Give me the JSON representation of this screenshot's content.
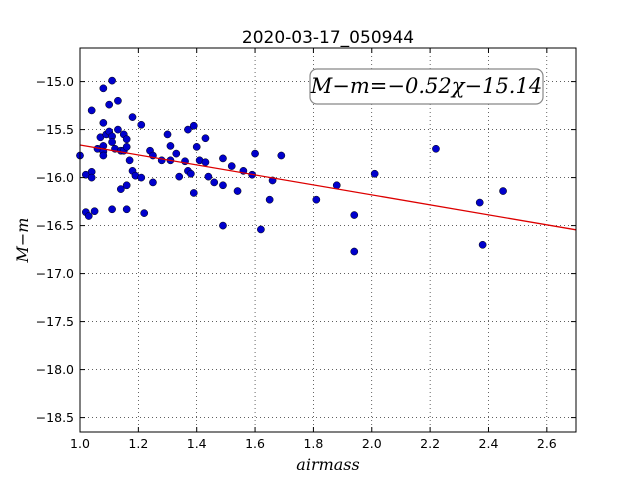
{
  "chart_data": {
    "type": "scatter",
    "title": "2020-03-17_050944",
    "xlabel": "airmass",
    "ylabel": "M−m",
    "xlim": [
      1.0,
      2.7
    ],
    "ylim": [
      -14.65,
      -18.65
    ],
    "y_inverted": true,
    "grid": true,
    "grid_style": "dotted",
    "x_ticks": [
      1.0,
      1.2,
      1.4,
      1.6,
      1.8,
      2.0,
      2.2,
      2.4,
      2.6
    ],
    "x_tick_labels": [
      "1.0",
      "1.2",
      "1.4",
      "1.6",
      "1.8",
      "2.0",
      "2.2",
      "2.4",
      "2.6"
    ],
    "y_ticks": [
      -15.0,
      -15.5,
      -16.0,
      -16.5,
      -17.0,
      -17.5,
      -18.0,
      -18.5
    ],
    "y_tick_labels": [
      "−15.0",
      "−15.5",
      "−16.0",
      "−16.5",
      "−17.0",
      "−17.5",
      "−18.0",
      "−18.5"
    ],
    "annotation": "M−m=−0.52χ−15.14",
    "annotation_placement": "top-right",
    "fit": {
      "slope": -0.52,
      "intercept": -15.14,
      "color": "#dd0000"
    },
    "marker_color": "#0000cc",
    "series": [
      {
        "points": [
          [
            1.0,
            -15.77
          ],
          [
            1.02,
            -15.97
          ],
          [
            1.02,
            -16.36
          ],
          [
            1.03,
            -16.4
          ],
          [
            1.04,
            -15.3
          ],
          [
            1.04,
            -15.94
          ],
          [
            1.04,
            -16.0
          ],
          [
            1.05,
            -16.35
          ],
          [
            1.06,
            -15.7
          ],
          [
            1.07,
            -15.58
          ],
          [
            1.08,
            -15.43
          ],
          [
            1.08,
            -15.67
          ],
          [
            1.08,
            -15.73
          ],
          [
            1.08,
            -15.77
          ],
          [
            1.08,
            -15.07
          ],
          [
            1.09,
            -15.55
          ],
          [
            1.1,
            -15.24
          ],
          [
            1.1,
            -15.52
          ],
          [
            1.11,
            -14.99
          ],
          [
            1.11,
            -15.57
          ],
          [
            1.11,
            -15.63
          ],
          [
            1.11,
            -16.33
          ],
          [
            1.12,
            -15.7
          ],
          [
            1.13,
            -15.2
          ],
          [
            1.13,
            -15.5
          ],
          [
            1.14,
            -15.72
          ],
          [
            1.14,
            -16.12
          ],
          [
            1.15,
            -15.55
          ],
          [
            1.15,
            -15.72
          ],
          [
            1.16,
            -15.6
          ],
          [
            1.16,
            -15.68
          ],
          [
            1.16,
            -16.08
          ],
          [
            1.16,
            -16.33
          ],
          [
            1.17,
            -15.82
          ],
          [
            1.18,
            -15.37
          ],
          [
            1.18,
            -15.93
          ],
          [
            1.19,
            -15.98
          ],
          [
            1.21,
            -15.45
          ],
          [
            1.21,
            -16.0
          ],
          [
            1.22,
            -16.37
          ],
          [
            1.24,
            -15.72
          ],
          [
            1.25,
            -15.77
          ],
          [
            1.25,
            -16.05
          ],
          [
            1.28,
            -15.82
          ],
          [
            1.3,
            -15.55
          ],
          [
            1.31,
            -15.67
          ],
          [
            1.31,
            -15.82
          ],
          [
            1.33,
            -15.75
          ],
          [
            1.34,
            -15.99
          ],
          [
            1.36,
            -15.83
          ],
          [
            1.37,
            -15.5
          ],
          [
            1.37,
            -15.93
          ],
          [
            1.38,
            -15.96
          ],
          [
            1.39,
            -15.46
          ],
          [
            1.39,
            -16.16
          ],
          [
            1.4,
            -15.68
          ],
          [
            1.41,
            -15.82
          ],
          [
            1.43,
            -15.59
          ],
          [
            1.43,
            -15.84
          ],
          [
            1.44,
            -15.99
          ],
          [
            1.46,
            -16.05
          ],
          [
            1.49,
            -15.8
          ],
          [
            1.49,
            -16.08
          ],
          [
            1.49,
            -16.5
          ],
          [
            1.52,
            -15.88
          ],
          [
            1.54,
            -16.14
          ],
          [
            1.56,
            -15.93
          ],
          [
            1.59,
            -15.97
          ],
          [
            1.6,
            -15.75
          ],
          [
            1.62,
            -16.54
          ],
          [
            1.65,
            -16.23
          ],
          [
            1.66,
            -16.03
          ],
          [
            1.69,
            -15.77
          ],
          [
            1.81,
            -16.23
          ],
          [
            1.88,
            -16.08
          ],
          [
            1.94,
            -16.39
          ],
          [
            1.94,
            -16.77
          ],
          [
            2.01,
            -15.96
          ],
          [
            2.22,
            -15.7
          ],
          [
            2.37,
            -16.26
          ],
          [
            2.38,
            -16.7
          ],
          [
            2.45,
            -16.14
          ]
        ]
      }
    ]
  }
}
